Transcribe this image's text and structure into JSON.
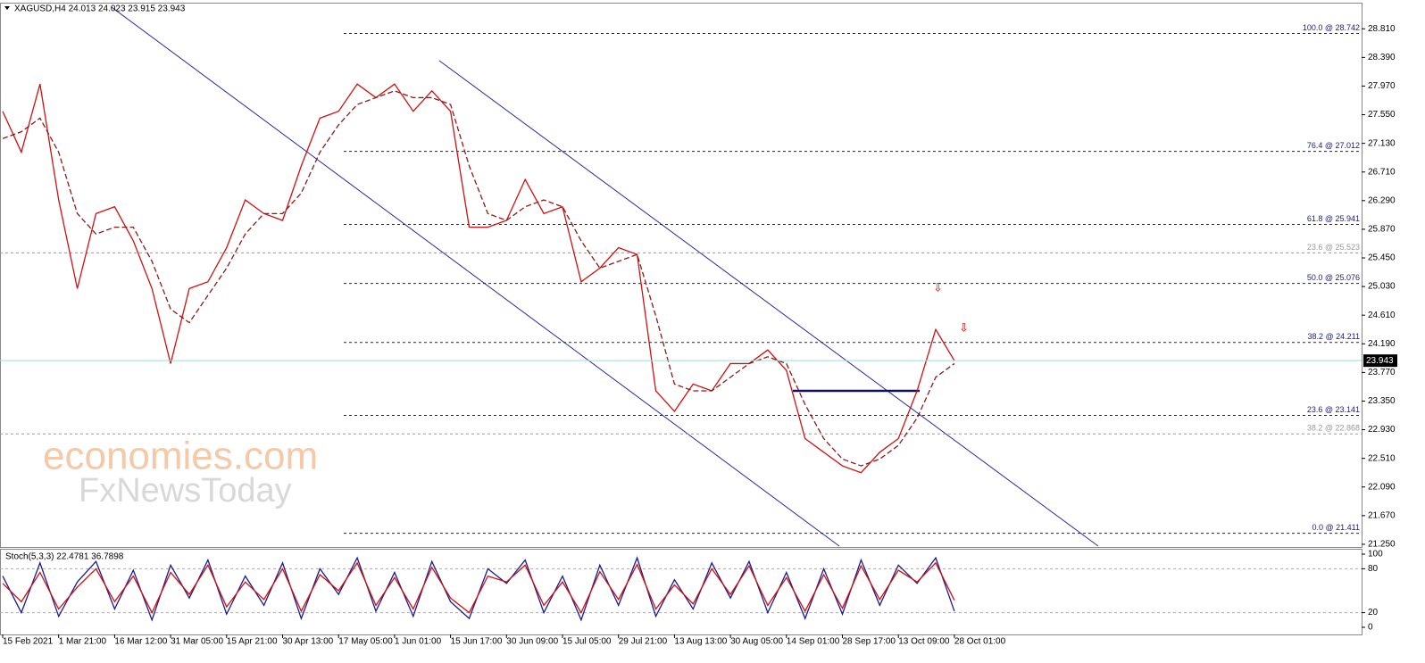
{
  "chart_data": [
    {
      "type": "line",
      "title": "XAGUSD,H4  24.013 24.023 23.915 23.943",
      "categories": [
        "15 Feb 2021",
        null,
        null,
        "1 Mar 21:00",
        null,
        null,
        "16 Mar 12:00",
        null,
        null,
        "31 Mar 05:00",
        null,
        null,
        "15 Apr 21:00",
        null,
        null,
        "30 Apr 13:00",
        null,
        null,
        "17 May 05:00",
        null,
        null,
        "1 Jun 01:00",
        null,
        null,
        "15 Jun 17:00",
        null,
        null,
        "30 Jun 09:00",
        null,
        null,
        "15 Jul 05:00",
        null,
        null,
        "29 Jul 21:00",
        null,
        null,
        "13 Aug 13:00",
        null,
        null,
        "30 Aug 05:00",
        null,
        null,
        "14 Sep 01:00",
        null,
        null,
        "28 Sep 17:00",
        null,
        null,
        "13 Oct 09:00",
        null,
        null,
        "28 Oct 01:00"
      ],
      "series": [
        {
          "color": "#d01010",
          "values": [
            27.6,
            27.0,
            28.0,
            26.3,
            25.0,
            26.1,
            26.2,
            25.7,
            25.0,
            23.9,
            25.0,
            25.1,
            25.6,
            26.3,
            26.1,
            26.0,
            26.8,
            27.5,
            27.6,
            28.0,
            27.8,
            28.0,
            27.6,
            27.9,
            27.6,
            25.9,
            25.9,
            26.0,
            26.6,
            26.1,
            26.2,
            25.1,
            25.3,
            25.6,
            25.5,
            23.5,
            23.2,
            23.6,
            23.5,
            23.9,
            23.9,
            24.1,
            23.8,
            22.8,
            22.6,
            22.4,
            22.3,
            22.6,
            22.8,
            23.5,
            24.4,
            23.943
          ]
        },
        {
          "color": "#8b1a1a",
          "dash": true,
          "values": [
            27.2,
            27.3,
            27.5,
            27.0,
            26.1,
            25.8,
            25.9,
            25.9,
            25.4,
            24.7,
            24.5,
            24.9,
            25.3,
            25.8,
            26.1,
            26.1,
            26.4,
            27.0,
            27.4,
            27.7,
            27.8,
            27.9,
            27.8,
            27.8,
            27.7,
            26.8,
            26.1,
            26.0,
            26.2,
            26.3,
            26.2,
            25.7,
            25.3,
            25.4,
            25.5,
            24.6,
            23.6,
            23.5,
            23.5,
            23.7,
            23.9,
            24.0,
            23.9,
            23.3,
            22.8,
            22.5,
            22.4,
            22.5,
            22.7,
            23.1,
            23.7,
            23.9
          ]
        }
      ],
      "ylim": [
        21.21,
        29.18
      ],
      "yticks": [
        {
          "value": 21.25,
          "label": "21.250"
        },
        {
          "value": 21.67,
          "label": "21.670"
        },
        {
          "value": 22.09,
          "label": "22.090"
        },
        {
          "value": 22.51,
          "label": "22.510"
        },
        {
          "value": 22.93,
          "label": "22.930"
        },
        {
          "value": 23.35,
          "label": "23.350"
        },
        {
          "value": 23.77,
          "label": "23.770"
        },
        {
          "value": 24.19,
          "label": "24.190"
        },
        {
          "value": 24.61,
          "label": "24.610"
        },
        {
          "value": 25.03,
          "label": "25.030"
        },
        {
          "value": 25.45,
          "label": "25.450"
        },
        {
          "value": 25.87,
          "label": "25.870"
        },
        {
          "value": 26.29,
          "label": "26.290"
        },
        {
          "value": 26.71,
          "label": "26.710"
        },
        {
          "value": 27.13,
          "label": "27.130"
        },
        {
          "value": 27.55,
          "label": "27.550"
        },
        {
          "value": 27.97,
          "label": "27.970"
        },
        {
          "value": 28.39,
          "label": "28.390"
        },
        {
          "value": 28.81,
          "label": "28.810"
        }
      ],
      "levels": [
        {
          "value": 28.742,
          "label": "100.0 @ 28.742",
          "color": "#1a1a80"
        },
        {
          "value": 27.012,
          "label": "76.4 @ 27.012",
          "color": "#1a1a80"
        },
        {
          "value": 25.941,
          "label": "61.8 @ 25.941",
          "color": "#1a1a80"
        },
        {
          "value": 25.523,
          "label": "23.6 @ 25.523",
          "color": "#999999"
        },
        {
          "value": 25.076,
          "label": "50.0 @ 25.076",
          "color": "#1a1a80"
        },
        {
          "value": 24.211,
          "label": "38.2 @ 24.211",
          "color": "#1a1a80"
        },
        {
          "value": 23.141,
          "label": "23.6 @ 23.141",
          "color": "#1a1a80"
        },
        {
          "value": 22.868,
          "label": "38.2 @ 22.868",
          "color": "#999999"
        },
        {
          "value": 21.411,
          "label": "0.0 @ 21.411",
          "color": "#1a1a80"
        }
      ],
      "last_price": 23.943,
      "annotations": [
        "economies.com",
        "FxNewsToday"
      ]
    },
    {
      "type": "line",
      "title": "Stoch(5,3,3) 22.4781 36.7898",
      "series": [
        {
          "color": "#1a1a90",
          "values": [
            70,
            20,
            88,
            15,
            62,
            90,
            25,
            78,
            10,
            85,
            40,
            92,
            18,
            70,
            30,
            88,
            12,
            80,
            45,
            95,
            22,
            75,
            15,
            90,
            35,
            12,
            80,
            60,
            92,
            20,
            70,
            10,
            85,
            30,
            95,
            15,
            65,
            25,
            88,
            40,
            90,
            20,
            75,
            12,
            80,
            18,
            92,
            30,
            85,
            60,
            95,
            22
          ]
        },
        {
          "color": "#d01010",
          "values": [
            60,
            35,
            75,
            25,
            55,
            80,
            35,
            70,
            20,
            75,
            45,
            85,
            28,
            62,
            38,
            80,
            22,
            72,
            50,
            88,
            30,
            68,
            25,
            82,
            40,
            20,
            70,
            62,
            85,
            30,
            62,
            20,
            76,
            38,
            86,
            25,
            58,
            32,
            80,
            45,
            84,
            30,
            68,
            22,
            72,
            26,
            84,
            38,
            78,
            62,
            88,
            37
          ]
        }
      ],
      "ylim": [
        0,
        100
      ],
      "yticks": [
        0,
        20,
        80,
        100
      ]
    }
  ]
}
